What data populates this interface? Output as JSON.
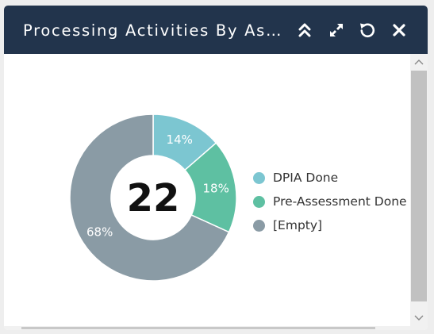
{
  "header": {
    "title": "Processing Activities By Assessment Status",
    "icons": [
      "chevron-double-up-icon",
      "expand-icon",
      "refresh-icon",
      "close-icon"
    ]
  },
  "chart_data": {
    "type": "pie",
    "donut": true,
    "center_label": "22",
    "categories": [
      "DPIA Done",
      "Pre-Assessment Done",
      "[Empty]"
    ],
    "values": [
      3,
      4,
      15
    ],
    "percent_labels": [
      "14%",
      "18%",
      "68%"
    ],
    "colors": [
      "#7cc6d1",
      "#5ec0a2",
      "#8a9ba5"
    ],
    "legend_position": "right"
  }
}
